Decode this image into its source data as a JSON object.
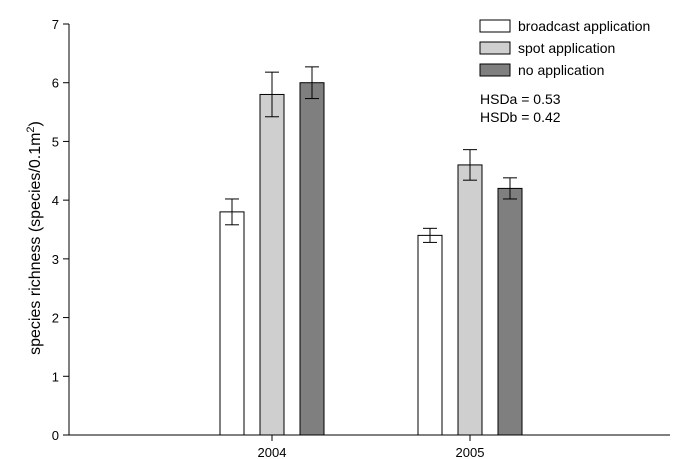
{
  "chart_data": {
    "type": "bar",
    "categories": [
      "2004",
      "2005"
    ],
    "series": [
      {
        "name": "broadcast application",
        "values": [
          3.8,
          3.4
        ],
        "errors": [
          0.22,
          0.12
        ],
        "color": "#ffffff"
      },
      {
        "name": "spot application",
        "values": [
          5.8,
          4.6
        ],
        "errors": [
          0.38,
          0.26
        ],
        "color": "#cfcfcf"
      },
      {
        "name": "no application",
        "values": [
          6.0,
          4.2
        ],
        "errors": [
          0.27,
          0.18
        ],
        "color": "#7f7f7f"
      }
    ],
    "xlabel": "",
    "ylabel": "species richness (species/0.1m",
    "ylabel_sup": "2",
    "ylabel_end": ")",
    "ylim": [
      0,
      7
    ],
    "yticks": [
      0,
      1,
      2,
      3,
      4,
      5,
      6,
      7
    ],
    "legend_placement": "top-right",
    "annotations": [
      "HSDa = 0.53",
      "HSDb = 0.42"
    ],
    "grid": false
  }
}
